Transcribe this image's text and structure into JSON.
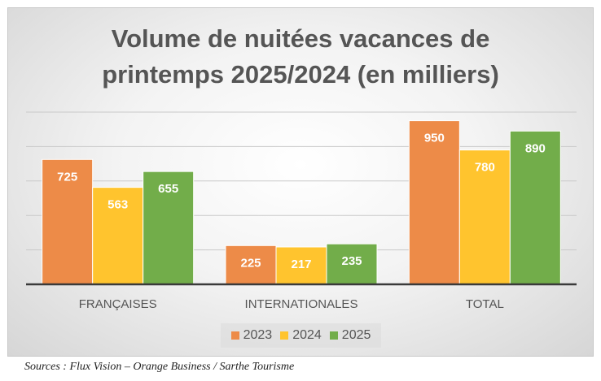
{
  "chart_data": {
    "type": "bar",
    "title_line1": "Volume de nuitées vacances de",
    "title_line2": "printemps 2025/2024 (en milliers)",
    "categories": [
      "FRANÇAISES",
      "INTERNATIONALES",
      "TOTAL"
    ],
    "series": [
      {
        "name": "2023",
        "color": "#ED8B48",
        "values": [
          725,
          225,
          950
        ]
      },
      {
        "name": "2024",
        "color": "#FFC42E",
        "values": [
          563,
          217,
          780
        ]
      },
      {
        "name": "2025",
        "color": "#72AD4A",
        "values": [
          655,
          235,
          890
        ]
      }
    ],
    "ylim": [
      0,
      1000
    ],
    "grid": true,
    "legend_position": "bottom"
  },
  "source": "Sources : Flux Vision – Orange Business / Sarthe Tourisme"
}
